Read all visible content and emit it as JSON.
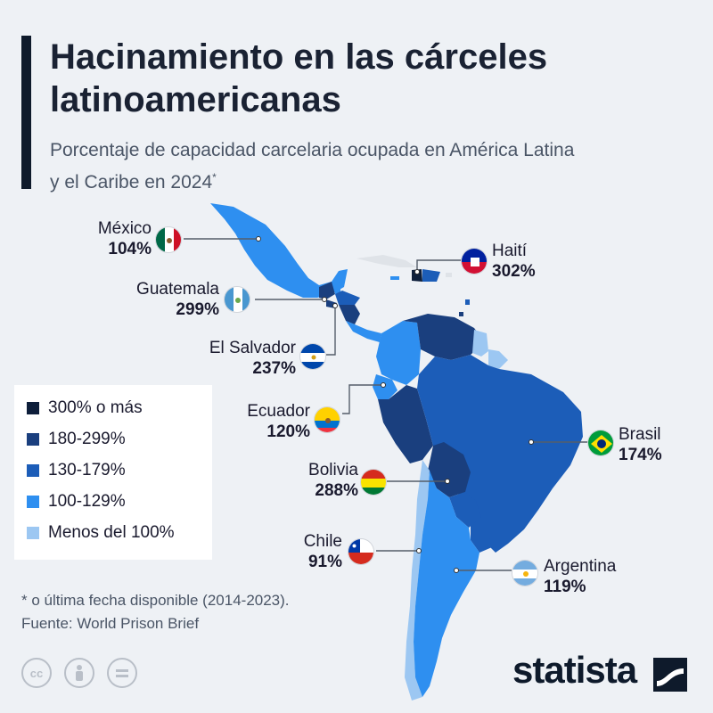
{
  "title": "Hacinamiento en las cárceles latinoamericanas",
  "subtitle": "Porcentaje de capacidad carcelaria ocupada en América Latina y el Caribe en 2024",
  "subtitle_mark": "*",
  "legend": [
    {
      "label": "300% o más",
      "color": "#0d1e3a"
    },
    {
      "label": "180-299%",
      "color": "#1a3f7e"
    },
    {
      "label": "130-179%",
      "color": "#1c5db8"
    },
    {
      "label": "100-129%",
      "color": "#2e8ff0"
    },
    {
      "label": "Menos del 100%",
      "color": "#9cc7f2"
    }
  ],
  "countries": {
    "mexico": {
      "name": "México",
      "value": "104%"
    },
    "guatemala": {
      "name": "Guatemala",
      "value": "299%"
    },
    "el_salvador": {
      "name": "El Salvador",
      "value": "237%"
    },
    "ecuador": {
      "name": "Ecuador",
      "value": "120%"
    },
    "bolivia": {
      "name": "Bolivia",
      "value": "288%"
    },
    "chile": {
      "name": "Chile",
      "value": "91%"
    },
    "haiti": {
      "name": "Haití",
      "value": "302%"
    },
    "brasil": {
      "name": "Brasil",
      "value": "174%"
    },
    "argentina": {
      "name": "Argentina",
      "value": "119%"
    }
  },
  "footnote": "* o última fecha disponible (2014-2023).",
  "source": "Fuente: World Prison Brief",
  "license_icons": [
    "cc-icon",
    "attribution-icon",
    "no-derivatives-icon"
  ],
  "brand": "statista"
}
